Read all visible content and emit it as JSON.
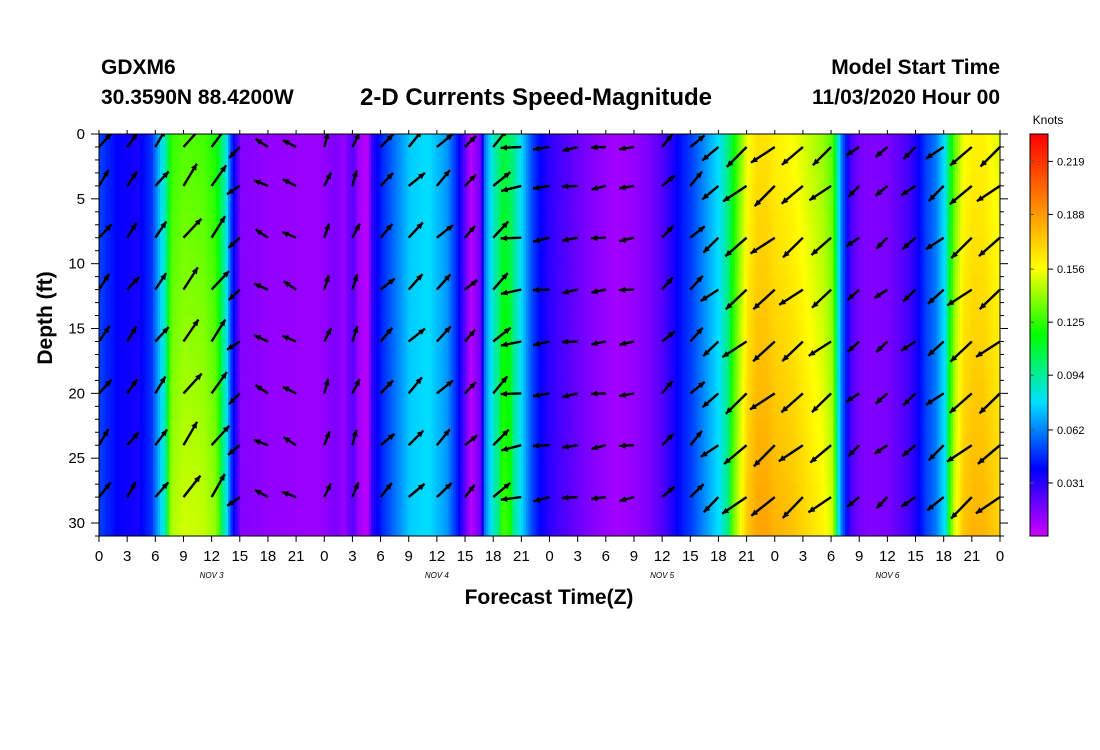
{
  "header": {
    "station": "GDXM6",
    "coords": "30.3590N 88.4200W",
    "title": "2-D Currents Speed-Magnitude",
    "model_start_label": "Model Start Time",
    "model_start_value": "11/03/2020 Hour 00"
  },
  "chart_data": {
    "type": "heatmap",
    "title": "2-D Currents Speed-Magnitude",
    "xlabel": "Forecast Time(Z)",
    "ylabel": "Depth (ft)",
    "x_unit": "hours since 11/03/2020 00Z",
    "xlim": [
      0,
      96
    ],
    "ylim": [
      0,
      31
    ],
    "y_inverted": true,
    "x_tick_labels": [
      "0",
      "3",
      "6",
      "9",
      "12",
      "15",
      "18",
      "21",
      "0",
      "3",
      "6",
      "9",
      "12",
      "15",
      "18",
      "21",
      "0",
      "3",
      "6",
      "9",
      "12",
      "15",
      "18",
      "21",
      "0",
      "3",
      "6",
      "9",
      "12",
      "15",
      "18",
      "21",
      "0"
    ],
    "y_ticks": [
      0,
      5,
      10,
      15,
      20,
      25,
      30
    ],
    "date_labels": [
      {
        "label": "NOV  3",
        "hour": 12
      },
      {
        "label": "NOV  4",
        "hour": 36
      },
      {
        "label": "NOV  5",
        "hour": 60
      },
      {
        "label": "NOV  6",
        "hour": 84
      }
    ],
    "colorbar": {
      "unit": "Knots",
      "range": [
        0.0,
        0.235
      ],
      "tick_labels": [
        "0.031",
        "0.062",
        "0.094",
        "0.125",
        "0.156",
        "0.188",
        "0.219"
      ],
      "colors": [
        "#cc00ff",
        "#0000ff",
        "#00e0ff",
        "#00ff00",
        "#ffff00",
        "#ff8000",
        "#ff0000"
      ]
    },
    "speed_profile": {
      "hours": [
        0,
        2,
        4,
        5.5,
        7,
        7.6,
        9,
        11,
        12.3,
        13.3,
        14,
        15,
        18,
        21,
        23.5,
        25,
        26,
        26.5,
        27,
        27.5,
        28,
        28.5,
        29,
        30,
        32,
        33,
        35,
        36,
        37,
        38,
        39.5,
        40.5,
        41,
        42,
        43,
        44,
        46,
        47,
        48,
        50,
        52,
        54,
        55,
        56,
        57,
        58,
        59,
        60,
        61,
        62,
        63,
        64,
        65,
        66,
        67,
        68,
        69,
        70,
        71,
        72,
        73,
        74,
        75,
        76,
        77,
        78,
        79,
        80,
        81,
        82,
        84,
        85,
        86,
        87,
        88,
        89,
        90,
        91,
        92,
        93,
        94,
        95,
        96
      ],
      "speed_knots": [
        0.05,
        0.038,
        0.035,
        0.048,
        0.092,
        0.125,
        0.13,
        0.128,
        0.12,
        0.09,
        0.048,
        0.014,
        0.011,
        0.01,
        0.01,
        0.015,
        0.01,
        0.018,
        0.022,
        0.01,
        0.005,
        0.004,
        0.03,
        0.045,
        0.065,
        0.075,
        0.078,
        0.072,
        0.065,
        0.045,
        0.004,
        0.018,
        0.06,
        0.09,
        0.108,
        0.098,
        0.052,
        0.038,
        0.03,
        0.022,
        0.015,
        0.01,
        0.008,
        0.009,
        0.011,
        0.014,
        0.018,
        0.024,
        0.034,
        0.043,
        0.05,
        0.06,
        0.07,
        0.08,
        0.1,
        0.13,
        0.155,
        0.165,
        0.165,
        0.16,
        0.158,
        0.155,
        0.15,
        0.145,
        0.14,
        0.13,
        0.06,
        0.025,
        0.016,
        0.014,
        0.016,
        0.02,
        0.025,
        0.035,
        0.05,
        0.06,
        0.08,
        0.13,
        0.155,
        0.16,
        0.16,
        0.155,
        0.15
      ]
    },
    "vector_grid": {
      "time_step_hours": 3,
      "depths_ft": [
        1,
        4,
        8,
        12,
        16,
        20,
        24,
        28
      ],
      "direction": "arrows point toward current flow; northeast-bound early, southwest-bound later"
    }
  }
}
